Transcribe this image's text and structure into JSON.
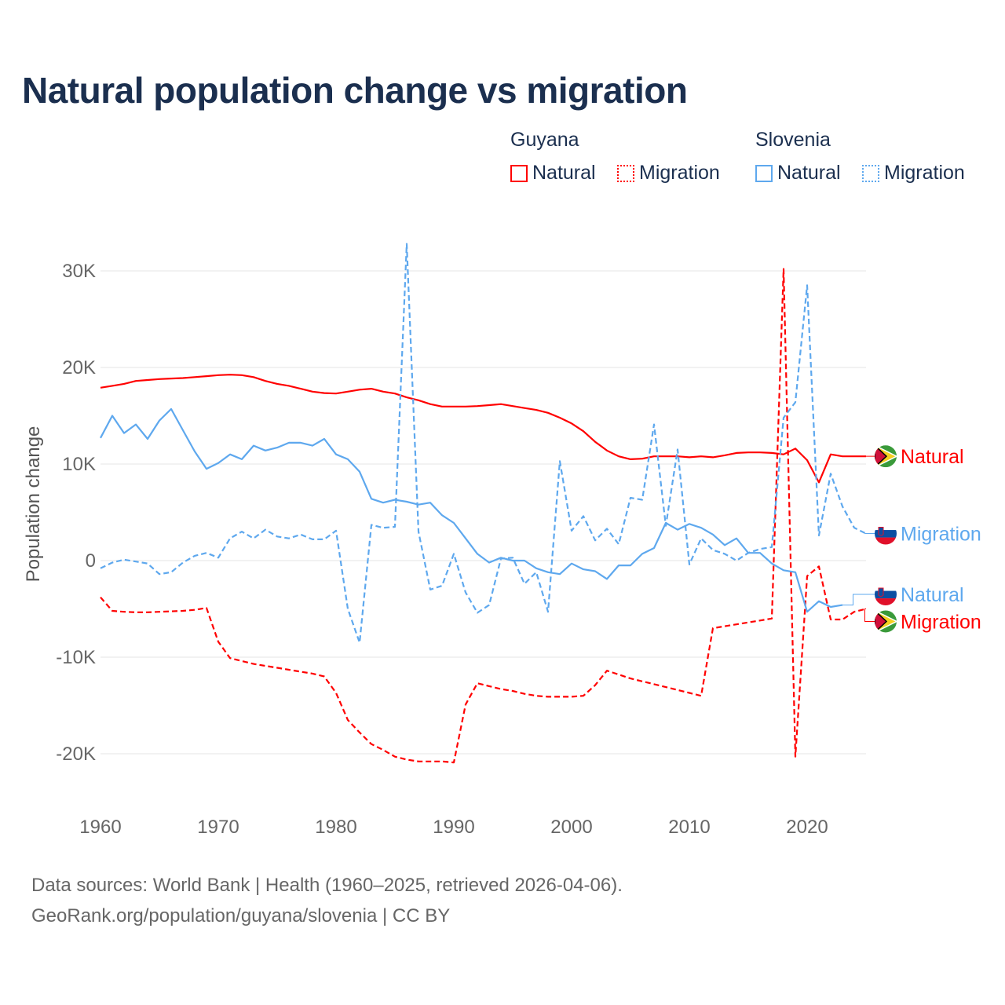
{
  "chart_data": {
    "type": "line",
    "title": "Natural population change vs migration",
    "xlabel": "",
    "ylabel": "Population change",
    "xlim": [
      1960,
      2025
    ],
    "ylim": [
      -25000,
      32000
    ],
    "grid": true,
    "x_ticks": [
      1960,
      1970,
      1980,
      1990,
      2000,
      2010,
      2020
    ],
    "x_tick_labels": [
      "1960",
      "1970",
      "1980",
      "1990",
      "2000",
      "2010",
      "2020"
    ],
    "y_ticks": [
      30000,
      20000,
      10000,
      0,
      -10000,
      -20000
    ],
    "y_tick_labels": [
      "30K",
      "20K",
      "10K",
      "0",
      "-10K",
      "-20K"
    ],
    "legend": {
      "placement": "top-right",
      "groups": [
        {
          "name": "Guyana",
          "items": [
            "Natural",
            "Migration"
          ]
        },
        {
          "name": "Slovenia",
          "items": [
            "Natural",
            "Migration"
          ]
        }
      ]
    },
    "series": [
      {
        "name": "Guyana Natural",
        "country": "Guyana",
        "label": "Natural",
        "color": "#ff0000",
        "dashed": false,
        "start_year": 1960,
        "values": [
          17900,
          18100,
          18300,
          18600,
          18700,
          18800,
          18850,
          18900,
          19000,
          19100,
          19200,
          19250,
          19200,
          19000,
          18600,
          18300,
          18100,
          17800,
          17500,
          17350,
          17300,
          17500,
          17700,
          17800,
          17500,
          17300,
          16900,
          16600,
          16200,
          15950,
          15950,
          15950,
          16000,
          16100,
          16200,
          16000,
          15800,
          15600,
          15300,
          14800,
          14200,
          13400,
          12300,
          11400,
          10800,
          10500,
          10550,
          10800,
          10800,
          10800,
          10700,
          10800,
          10700,
          10900,
          11150,
          11200,
          11200,
          11150,
          11000,
          11600,
          10400,
          8100,
          11000,
          10800,
          10800,
          10800
        ]
      },
      {
        "name": "Guyana Migration",
        "country": "Guyana",
        "label": "Migration",
        "color": "#ff0000",
        "dashed": true,
        "start_year": 1960,
        "values": [
          -3800,
          -5200,
          -5300,
          -5350,
          -5350,
          -5300,
          -5250,
          -5200,
          -5100,
          -4900,
          -8400,
          -10100,
          -10400,
          -10700,
          -10900,
          -11100,
          -11300,
          -11500,
          -11700,
          -12000,
          -13700,
          -16500,
          -17800,
          -19000,
          -19600,
          -20300,
          -20600,
          -20800,
          -20800,
          -20800,
          -20900,
          -14900,
          -12700,
          -13000,
          -13300,
          -13500,
          -13800,
          -14000,
          -14100,
          -14100,
          -14100,
          -14000,
          -12900,
          -11400,
          -11800,
          -12200,
          -12500,
          -12800,
          -13100,
          -13400,
          -13700,
          -14000,
          -7000,
          -6800,
          -6600,
          -6400,
          -6200,
          -6000,
          30200,
          -20300,
          -1600,
          -600,
          -6100,
          -6100,
          -5300,
          -5000
        ]
      },
      {
        "name": "Slovenia Natural",
        "country": "Slovenia",
        "label": "Natural",
        "color": "#5ea8ee",
        "dashed": false,
        "start_year": 1960,
        "values": [
          12700,
          15000,
          13200,
          14100,
          12600,
          14500,
          15700,
          13500,
          11300,
          9500,
          10100,
          11000,
          10500,
          11900,
          11400,
          11700,
          12200,
          12200,
          11900,
          12600,
          11000,
          10500,
          9200,
          6400,
          6000,
          6300,
          6100,
          5800,
          6000,
          4700,
          3900,
          2300,
          700,
          -200,
          300,
          0,
          0,
          -800,
          -1200,
          -1400,
          -300,
          -900,
          -1100,
          -1900,
          -500,
          -500,
          700,
          1300,
          3900,
          3200,
          3800,
          3400,
          2700,
          1600,
          2300,
          800,
          800,
          -300,
          -1000,
          -1200,
          -5300,
          -4200,
          -4800,
          -4600
        ]
      },
      {
        "name": "Slovenia Migration",
        "country": "Slovenia",
        "label": "Migration",
        "color": "#5ea8ee",
        "dashed": true,
        "start_year": 1960,
        "values": [
          -800,
          -200,
          100,
          -100,
          -300,
          -1400,
          -1200,
          -200,
          500,
          800,
          300,
          2300,
          3000,
          2300,
          3200,
          2500,
          2300,
          2700,
          2200,
          2200,
          3100,
          -5000,
          -8500,
          3700,
          3400,
          3500,
          32800,
          3000,
          -3000,
          -2600,
          700,
          -3300,
          -5400,
          -4600,
          200,
          300,
          -2400,
          -1200,
          -5300,
          10300,
          3100,
          4600,
          2100,
          3300,
          1700,
          6500,
          6300,
          14100,
          3600,
          11500,
          -400,
          2300,
          1100,
          700,
          0,
          800,
          1200,
          1400,
          14800,
          16400,
          28500,
          2600,
          9000,
          5600,
          3400,
          2800
        ]
      }
    ],
    "end_labels": [
      {
        "text": "Natural",
        "series": 0,
        "value": 10800
      },
      {
        "text": "Migration",
        "series": 3,
        "value": 2800
      },
      {
        "text": "Natural",
        "series": 2,
        "value": -3500
      },
      {
        "text": "Migration",
        "series": 1,
        "value": -6300
      }
    ]
  },
  "footer": {
    "line1": "Data sources: World Bank | Health (1960–2025, retrieved 2026-04-06).",
    "line2": "GeoRank.org/population/guyana/slovenia | CC BY"
  }
}
